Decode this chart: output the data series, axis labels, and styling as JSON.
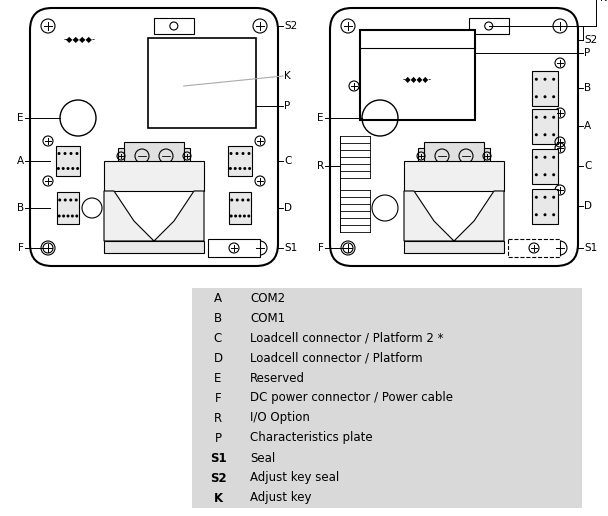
{
  "legend_rows": [
    {
      "key": "A",
      "bold": false,
      "description": "COM2"
    },
    {
      "key": "B",
      "bold": false,
      "description": "COM1"
    },
    {
      "key": "C",
      "bold": false,
      "description": "Loadcell connector / Platform 2 *"
    },
    {
      "key": "D",
      "bold": false,
      "description": "Loadcell connector / Platform"
    },
    {
      "key": "E",
      "bold": false,
      "description": "Reserved"
    },
    {
      "key": "F",
      "bold": false,
      "description": "DC power connector / Power cable"
    },
    {
      "key": "R",
      "bold": false,
      "description": "I/O Option"
    },
    {
      "key": "P",
      "bold": false,
      "description": "Characteristics plate"
    },
    {
      "key": "S1",
      "bold": true,
      "description": "Seal"
    },
    {
      "key": "S2",
      "bold": true,
      "description": "Adjust key seal"
    },
    {
      "key": "K",
      "bold": true,
      "description": "Adjust key"
    }
  ],
  "legend_bg": "#d9d9d9",
  "bg_color": "#ffffff",
  "diagram_color": "#000000",
  "diagram_gray": "#aaaaaa"
}
